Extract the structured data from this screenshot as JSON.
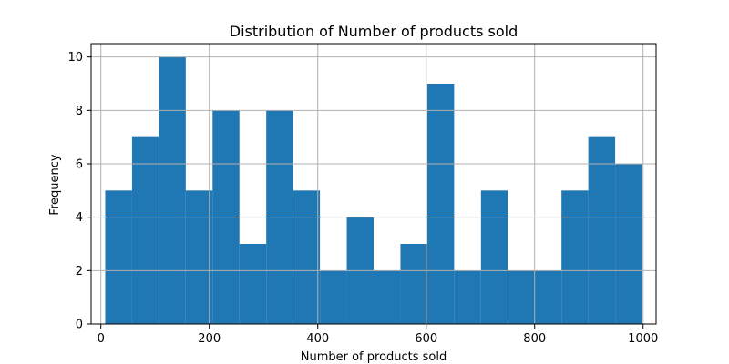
{
  "chart_data": {
    "type": "bar",
    "title": "Distribution of Number of products sold",
    "xlabel": "Number of products sold",
    "ylabel": "Frequency",
    "bin_edges": [
      8,
      57.5,
      107,
      156.5,
      206,
      255.5,
      305,
      354.5,
      404,
      453.5,
      503,
      552.5,
      602,
      651.5,
      701,
      750.5,
      800,
      849.5,
      899,
      948.5,
      998
    ],
    "values": [
      5,
      7,
      10,
      5,
      8,
      3,
      8,
      5,
      2,
      4,
      2,
      3,
      9,
      2,
      5,
      2,
      2,
      5,
      7,
      6
    ],
    "xlim": [
      -18,
      1024
    ],
    "ylim": [
      0,
      10.5
    ],
    "x_ticks": [
      0,
      200,
      400,
      600,
      800,
      1000
    ],
    "x_tick_labels": [
      "0",
      "200",
      "400",
      "600",
      "800",
      "1000"
    ],
    "y_ticks": [
      0,
      2,
      4,
      6,
      8,
      10
    ],
    "y_tick_labels": [
      "0",
      "2",
      "4",
      "6",
      "8",
      "10"
    ],
    "grid": true,
    "bar_color": "#1f77b4",
    "grid_color": "#b0b0b0"
  }
}
